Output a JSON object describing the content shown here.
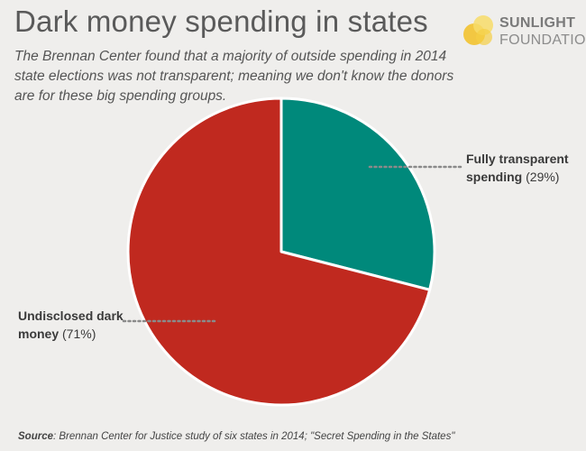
{
  "header": {
    "title": "Dark money spending in states",
    "subtitle": "The Brennan Center found that a majority of outside spending in 2014 state elections was not transparent; meaning we don't know the donors are for these big spending groups."
  },
  "logo": {
    "line1": "SUNLIGHT",
    "line2": "FOUNDATION",
    "colors": [
      "#f2c230",
      "#f7dc6a"
    ]
  },
  "chart_data": {
    "type": "pie",
    "slices": [
      {
        "label_bold": "Fully transparent spending",
        "label_pct": "(29%)",
        "value": 29,
        "color": "#00897b"
      },
      {
        "label_bold": "Undisclosed dark money",
        "label_pct": "(71%)",
        "value": 71,
        "color": "#c0291f"
      }
    ],
    "start_angle_deg": 0,
    "direction": "clockwise"
  },
  "footer": {
    "source_label": "Source",
    "source_text": ": Brennan Center for Justice study of six states in 2014; \"Secret Spending in the States\""
  }
}
